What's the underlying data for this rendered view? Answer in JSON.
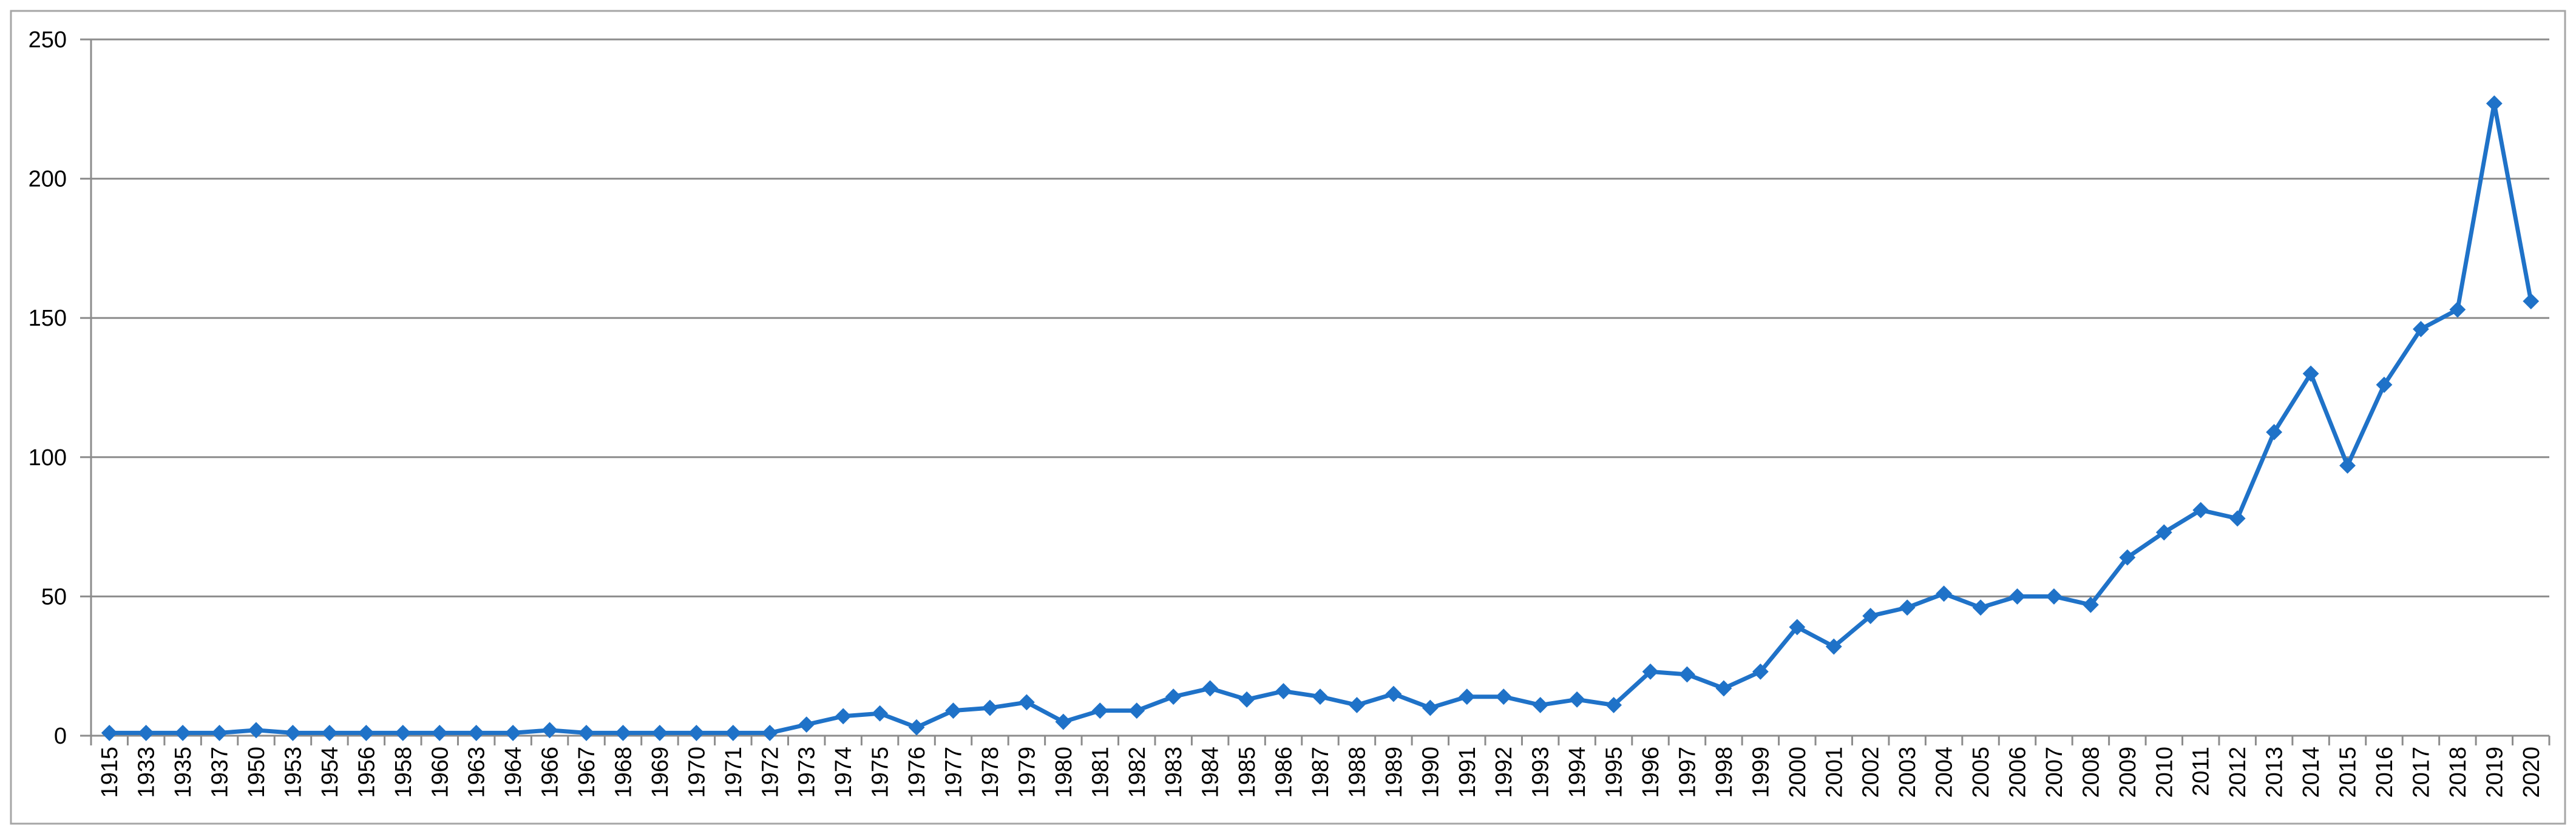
{
  "chart_data": {
    "type": "line",
    "title": "",
    "xlabel": "",
    "ylabel": "",
    "ylim": [
      0,
      250
    ],
    "yticks": [
      0,
      50,
      100,
      150,
      200,
      250
    ],
    "grid": "horizontal",
    "legend": "none",
    "marker": "diamond",
    "colors": {
      "series": "#1F72C8",
      "grid": "#8C8C8C",
      "axis": "#8C8C8C",
      "frame": "#A6A6A6"
    },
    "categories": [
      "1915",
      "1933",
      "1935",
      "1937",
      "1950",
      "1953",
      "1954",
      "1956",
      "1958",
      "1960",
      "1963",
      "1964",
      "1966",
      "1967",
      "1968",
      "1969",
      "1970",
      "1971",
      "1972",
      "1973",
      "1974",
      "1975",
      "1976",
      "1977",
      "1978",
      "1979",
      "1980",
      "1981",
      "1982",
      "1983",
      "1984",
      "1985",
      "1986",
      "1987",
      "1988",
      "1989",
      "1990",
      "1991",
      "1992",
      "1993",
      "1994",
      "1995",
      "1996",
      "1997",
      "1998",
      "1999",
      "2000",
      "2001",
      "2002",
      "2003",
      "2004",
      "2005",
      "2006",
      "2007",
      "2008",
      "2009",
      "2010",
      "2011",
      "2012",
      "2013",
      "2014",
      "2015",
      "2016",
      "2017",
      "2018",
      "2019",
      "2020"
    ],
    "series": [
      {
        "values": [
          1,
          1,
          1,
          1,
          2,
          1,
          1,
          1,
          1,
          1,
          1,
          1,
          2,
          1,
          1,
          1,
          1,
          1,
          1,
          4,
          7,
          8,
          3,
          9,
          10,
          12,
          5,
          9,
          9,
          14,
          17,
          13,
          16,
          14,
          11,
          15,
          10,
          14,
          14,
          11,
          13,
          11,
          23,
          22,
          17,
          23,
          39,
          32,
          43,
          46,
          51,
          46,
          50,
          50,
          47,
          64,
          73,
          81,
          78,
          109,
          130,
          97,
          126,
          146,
          153,
          227,
          156
        ]
      }
    ]
  }
}
